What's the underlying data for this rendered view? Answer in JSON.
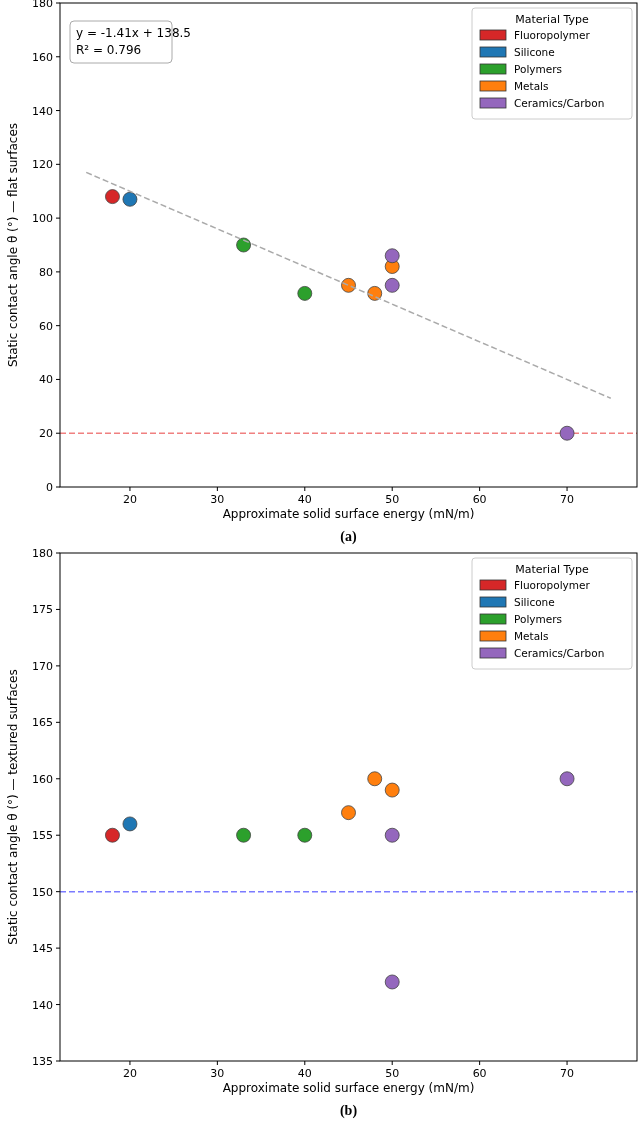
{
  "chart_data": [
    {
      "type": "scatter",
      "xlabel": "Approximate solid surface energy (mN/m)",
      "ylabel": "Static contact angle θ (°) — flat surfaces",
      "legend_title": "Material Type",
      "legend": "top right",
      "marker": "circle",
      "grid": false,
      "xlim": [
        12,
        78
      ],
      "xticks": [
        20,
        30,
        40,
        50,
        60,
        70
      ],
      "ylim": [
        0,
        180
      ],
      "yticks": [
        0,
        20,
        40,
        60,
        80,
        100,
        120,
        140,
        160,
        180
      ],
      "series": [
        {
          "name": "Fluoropolymer",
          "color": "#d62728",
          "x": [
            18
          ],
          "values": [
            108
          ]
        },
        {
          "name": "Silicone",
          "color": "#1f77b4",
          "x": [
            20
          ],
          "values": [
            107
          ]
        },
        {
          "name": "Polymers",
          "color": "#2ca02c",
          "x": [
            33,
            40
          ],
          "values": [
            90,
            72
          ]
        },
        {
          "name": "Metals",
          "color": "#ff7f0e",
          "x": [
            45,
            48,
            50
          ],
          "values": [
            75,
            72,
            82
          ]
        },
        {
          "name": "Ceramics/Carbon",
          "color": "#9467bd",
          "x": [
            50,
            50,
            70
          ],
          "values": [
            86,
            75,
            20
          ]
        },
        {
          "type": "line",
          "color": "#aaaaaa",
          "line_style": "dashed",
          "marker": "none",
          "x": [
            15,
            75
          ],
          "values": [
            117,
            33
          ]
        }
      ],
      "ref_lines": [
        {
          "axis": "y",
          "value": 20,
          "color": "#f08080",
          "line_style": "dashed"
        }
      ],
      "annotations": [
        "y = -1.41x + 138.5",
        "R² = 0.796",
        "(a)"
      ]
    },
    {
      "type": "scatter",
      "xlabel": "Approximate solid surface energy (mN/m)",
      "ylabel": "Static contact angle θ (°) — textured surfaces",
      "legend_title": "Material Type",
      "legend": "top right",
      "marker": "circle",
      "grid": false,
      "xlim": [
        12,
        78
      ],
      "xticks": [
        20,
        30,
        40,
        50,
        60,
        70
      ],
      "ylim": [
        135,
        180
      ],
      "yticks": [
        135,
        140,
        145,
        150,
        155,
        160,
        165,
        170,
        175,
        180
      ],
      "series": [
        {
          "name": "Fluoropolymer",
          "color": "#d62728",
          "x": [
            18
          ],
          "values": [
            155
          ]
        },
        {
          "name": "Silicone",
          "color": "#1f77b4",
          "x": [
            20
          ],
          "values": [
            156
          ]
        },
        {
          "name": "Polymers",
          "color": "#2ca02c",
          "x": [
            33,
            40
          ],
          "values": [
            155,
            155
          ]
        },
        {
          "name": "Metals",
          "color": "#ff7f0e",
          "x": [
            45,
            48,
            50
          ],
          "values": [
            157,
            160,
            159
          ]
        },
        {
          "name": "Ceramics/Carbon",
          "color": "#9467bd",
          "x": [
            50,
            50,
            70
          ],
          "values": [
            155,
            142,
            160
          ]
        }
      ],
      "ref_lines": [
        {
          "axis": "y",
          "value": 150,
          "color": "#7b7bff",
          "line_style": "dashed"
        }
      ],
      "annotations": [
        "(b)"
      ]
    }
  ]
}
